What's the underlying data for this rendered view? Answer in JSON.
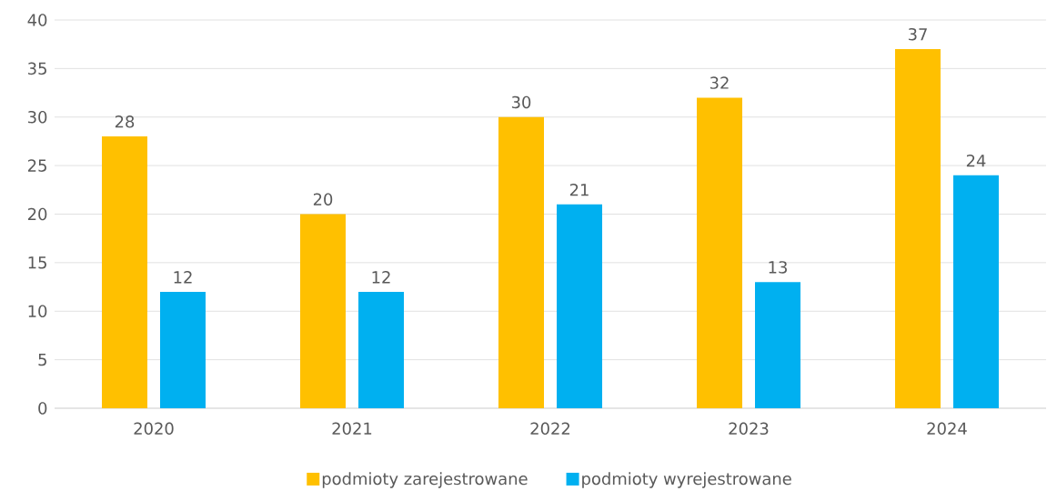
{
  "chart_data": {
    "type": "bar",
    "categories": [
      "2020",
      "2021",
      "2022",
      "2023",
      "2024"
    ],
    "series": [
      {
        "name": "podmioty zarejestrowane",
        "color": "#ffc000",
        "values": [
          28,
          20,
          30,
          32,
          37
        ]
      },
      {
        "name": "podmioty wyrejestrowane",
        "color": "#00b0f0",
        "values": [
          12,
          12,
          21,
          13,
          24
        ]
      }
    ],
    "ylim": [
      0,
      40
    ],
    "yticks": [
      0,
      5,
      10,
      15,
      20,
      25,
      30,
      35,
      40
    ],
    "grid": "y",
    "legend": "bottom",
    "data_labels": true
  }
}
